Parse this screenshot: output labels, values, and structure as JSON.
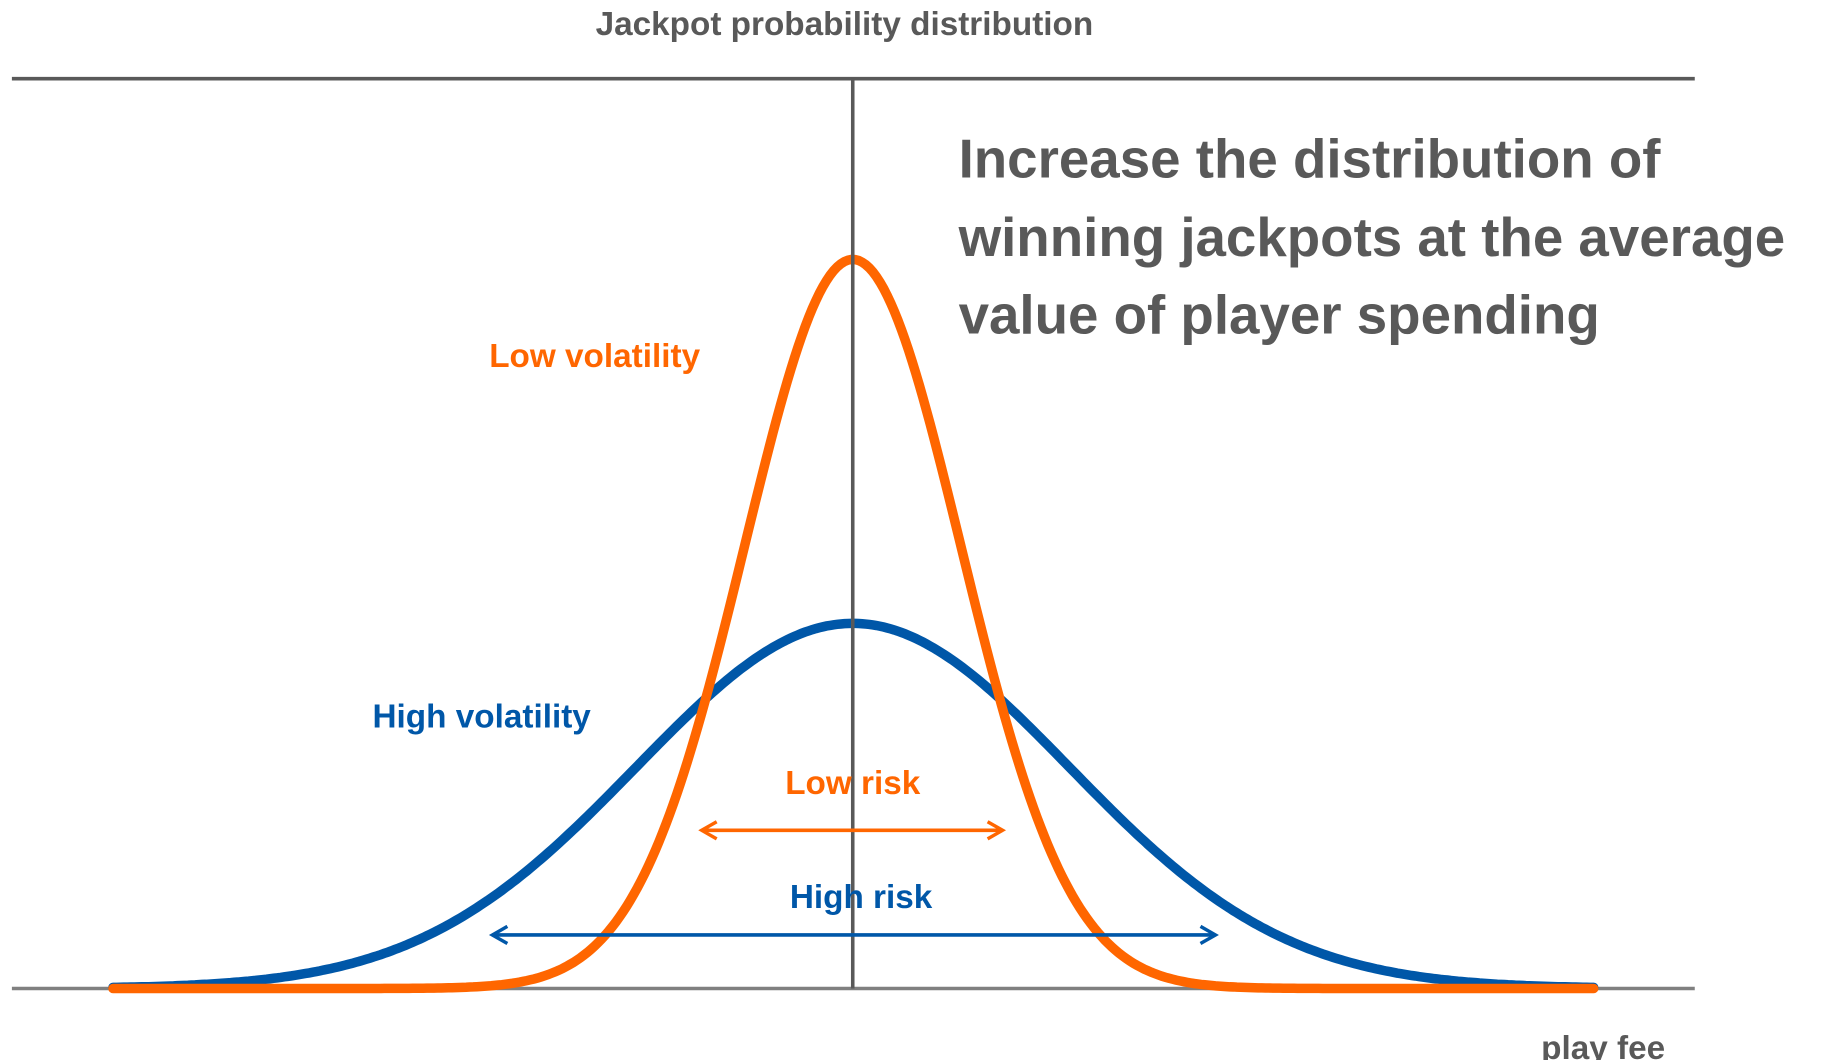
{
  "header": {
    "title": "Jackpot probability distribution"
  },
  "note": {
    "lines": [
      "Increase the distribution of",
      "winning jackpots at the average",
      "value of player spending"
    ]
  },
  "curves": [
    {
      "label": "Low volatility"
    },
    {
      "label": "High volatility"
    }
  ],
  "ranges": [
    {
      "label": "Low risk"
    },
    {
      "label": "High risk"
    }
  ],
  "axis": {
    "x_label": "play fee"
  }
}
